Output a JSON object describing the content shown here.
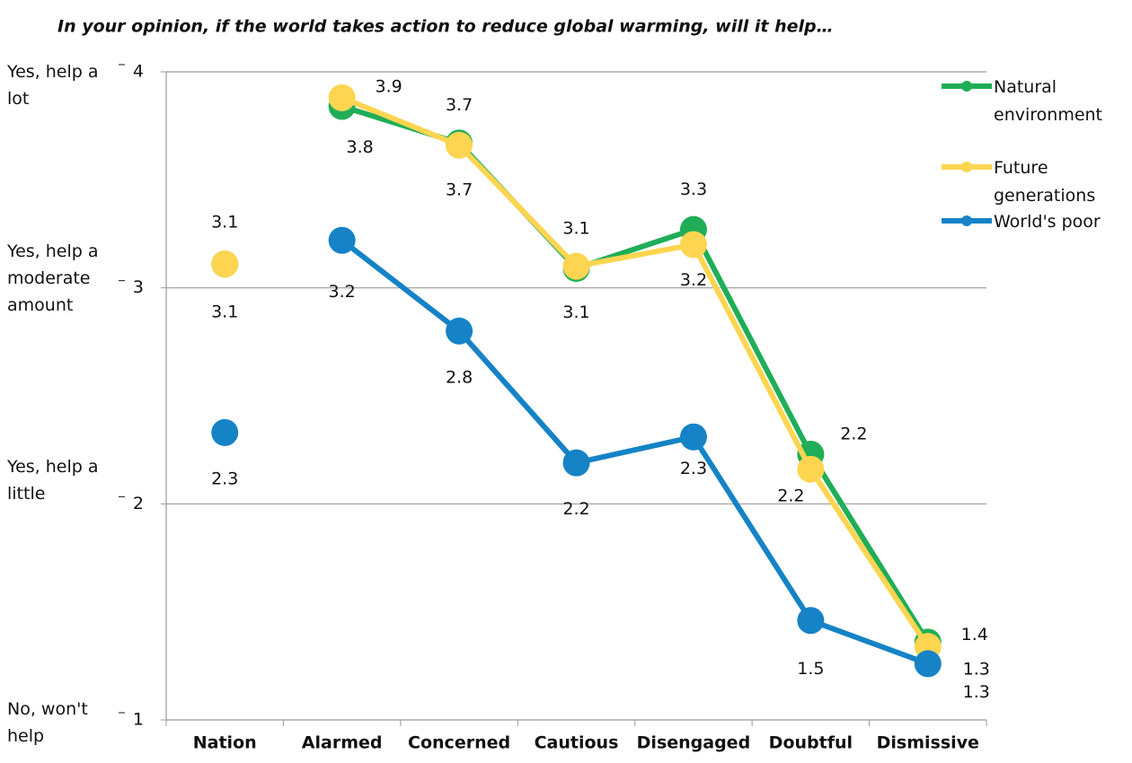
{
  "chart_data": {
    "type": "line",
    "title": "In your opinion, if the world takes action to reduce global warming, will it help…",
    "categories": [
      "Nation",
      "Alarmed",
      "Concerned",
      "Cautious",
      "Disengaged",
      "Doubtful",
      "Dismissive"
    ],
    "series": [
      {
        "name": "Natural environment",
        "color": "#1fae57",
        "values": [
          3.11,
          3.84,
          3.67,
          3.09,
          3.27,
          2.23,
          1.36
        ],
        "value_labels": [
          "3.1",
          "3.8",
          "3.7",
          "3.1",
          "3.3",
          "2.2",
          "1.4"
        ]
      },
      {
        "name": "Future generations",
        "color": "#fdd550",
        "values": [
          3.11,
          3.88,
          3.66,
          3.1,
          3.2,
          2.16,
          1.34
        ],
        "value_labels": [
          "3.1",
          "3.9",
          "3.7",
          "3.1",
          "3.2",
          "2.2",
          "1.3"
        ]
      },
      {
        "name": "World's poor",
        "color": "#1583c6",
        "values": [
          2.33,
          3.22,
          2.8,
          2.19,
          2.31,
          1.46,
          1.26
        ],
        "value_labels": [
          "2.3",
          "3.2",
          "2.8",
          "2.2",
          "2.3",
          "1.5",
          "1.3"
        ]
      }
    ],
    "ylim": [
      1,
      4
    ],
    "yticks": [
      1,
      2,
      3,
      4
    ],
    "ytick_descriptions": [
      "No, won't help",
      "Yes, help a little",
      "Yes, help a moderate amount",
      "Yes, help a lot"
    ],
    "grid": true,
    "legend": "right"
  }
}
